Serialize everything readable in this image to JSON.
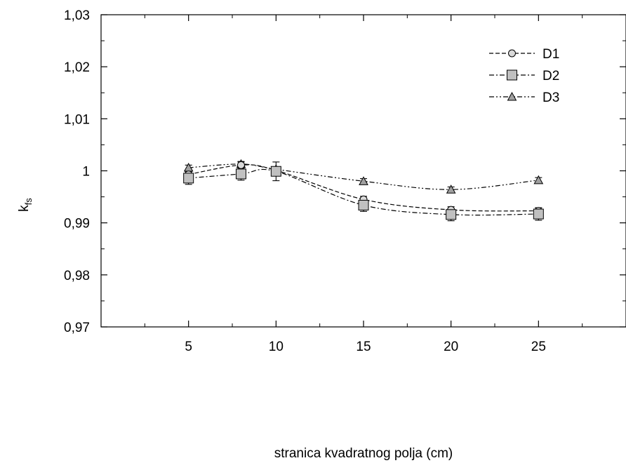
{
  "chart_data": {
    "type": "line",
    "xlabel": "stranica kvadratnog polja (cm)",
    "ylabel_main": "k",
    "ylabel_sub": "fs",
    "xlim": [
      0,
      30
    ],
    "ylim": [
      0.97,
      1.03
    ],
    "x_ticks": [
      5,
      10,
      15,
      20,
      25
    ],
    "x_tick_labels": [
      "5",
      "10",
      "15",
      "20",
      "25"
    ],
    "y_ticks": [
      0.97,
      0.98,
      0.99,
      1.0,
      1.01,
      1.02,
      1.03
    ],
    "y_tick_labels": [
      "0,97",
      "0,98",
      "0,99",
      "1",
      "1,01",
      "1,02",
      "1,03"
    ],
    "legend_position": "top-right",
    "grid": false,
    "series": [
      {
        "name": "D1",
        "marker": "circle",
        "dash": "dashed",
        "fill": "#d9d9d9",
        "x": [
          5,
          8,
          10,
          15,
          20,
          25
        ],
        "y": [
          0.9993,
          1.0011,
          1.0001,
          0.9945,
          0.9925,
          0.9923
        ],
        "err": [
          0.0006,
          0.0006,
          0.0006,
          0.0006,
          0.0006,
          0.0006
        ]
      },
      {
        "name": "D2",
        "marker": "square",
        "dash": "dashdot",
        "fill": "#c0c0c0",
        "x": [
          5,
          8,
          10,
          15,
          20,
          25
        ],
        "y": [
          0.9986,
          0.9994,
          0.9999,
          0.9934,
          0.9916,
          0.9917
        ],
        "err": [
          0.0012,
          0.0012,
          0.0018,
          0.0012,
          0.0012,
          0.0012
        ]
      },
      {
        "name": "D3",
        "marker": "triangle",
        "dash": "dashdotdot",
        "fill": "#a0a0a0",
        "x": [
          5,
          8,
          10,
          15,
          20,
          25
        ],
        "y": [
          1.0006,
          1.0013,
          1.0003,
          0.998,
          0.9964,
          0.9982
        ],
        "err": [
          0.0005,
          0.0005,
          0.0005,
          0.0005,
          0.0005,
          0.0005
        ]
      }
    ]
  }
}
